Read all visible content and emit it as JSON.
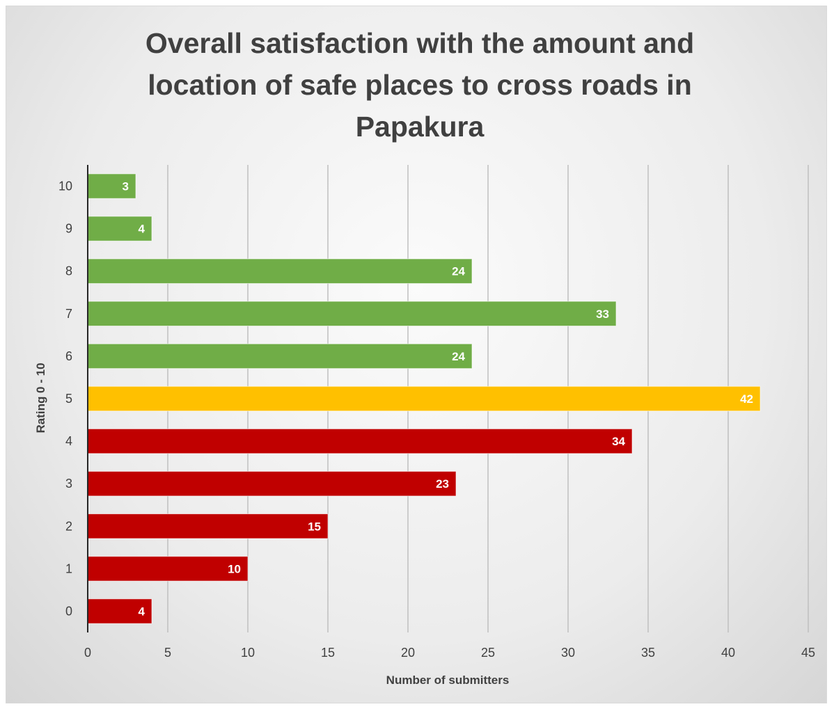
{
  "chart_data": {
    "type": "bar",
    "orientation": "horizontal",
    "title": "Overall satisfaction with the amount and location of safe places to cross roads in Papakura",
    "title_lines": [
      "Overall satisfaction with the amount and",
      "location of safe places to cross roads in",
      "Papakura"
    ],
    "xlabel": "Number of submitters",
    "ylabel": "Rating 0 - 10",
    "xlim": [
      0,
      45
    ],
    "x_ticks": [
      "0",
      "5",
      "10",
      "15",
      "20",
      "25",
      "30",
      "35",
      "40",
      "45"
    ],
    "categories": [
      "0",
      "1",
      "2",
      "3",
      "4",
      "5",
      "6",
      "7",
      "8",
      "9",
      "10"
    ],
    "values": [
      4,
      10,
      15,
      23,
      34,
      42,
      24,
      33,
      24,
      4,
      3
    ],
    "bar_colors": [
      "#c00000",
      "#c00000",
      "#c00000",
      "#c00000",
      "#c00000",
      "#ffc000",
      "#70ad47",
      "#70ad47",
      "#70ad47",
      "#70ad47",
      "#70ad47"
    ],
    "data_labels": true,
    "grid": "vertical",
    "legend": "none"
  }
}
